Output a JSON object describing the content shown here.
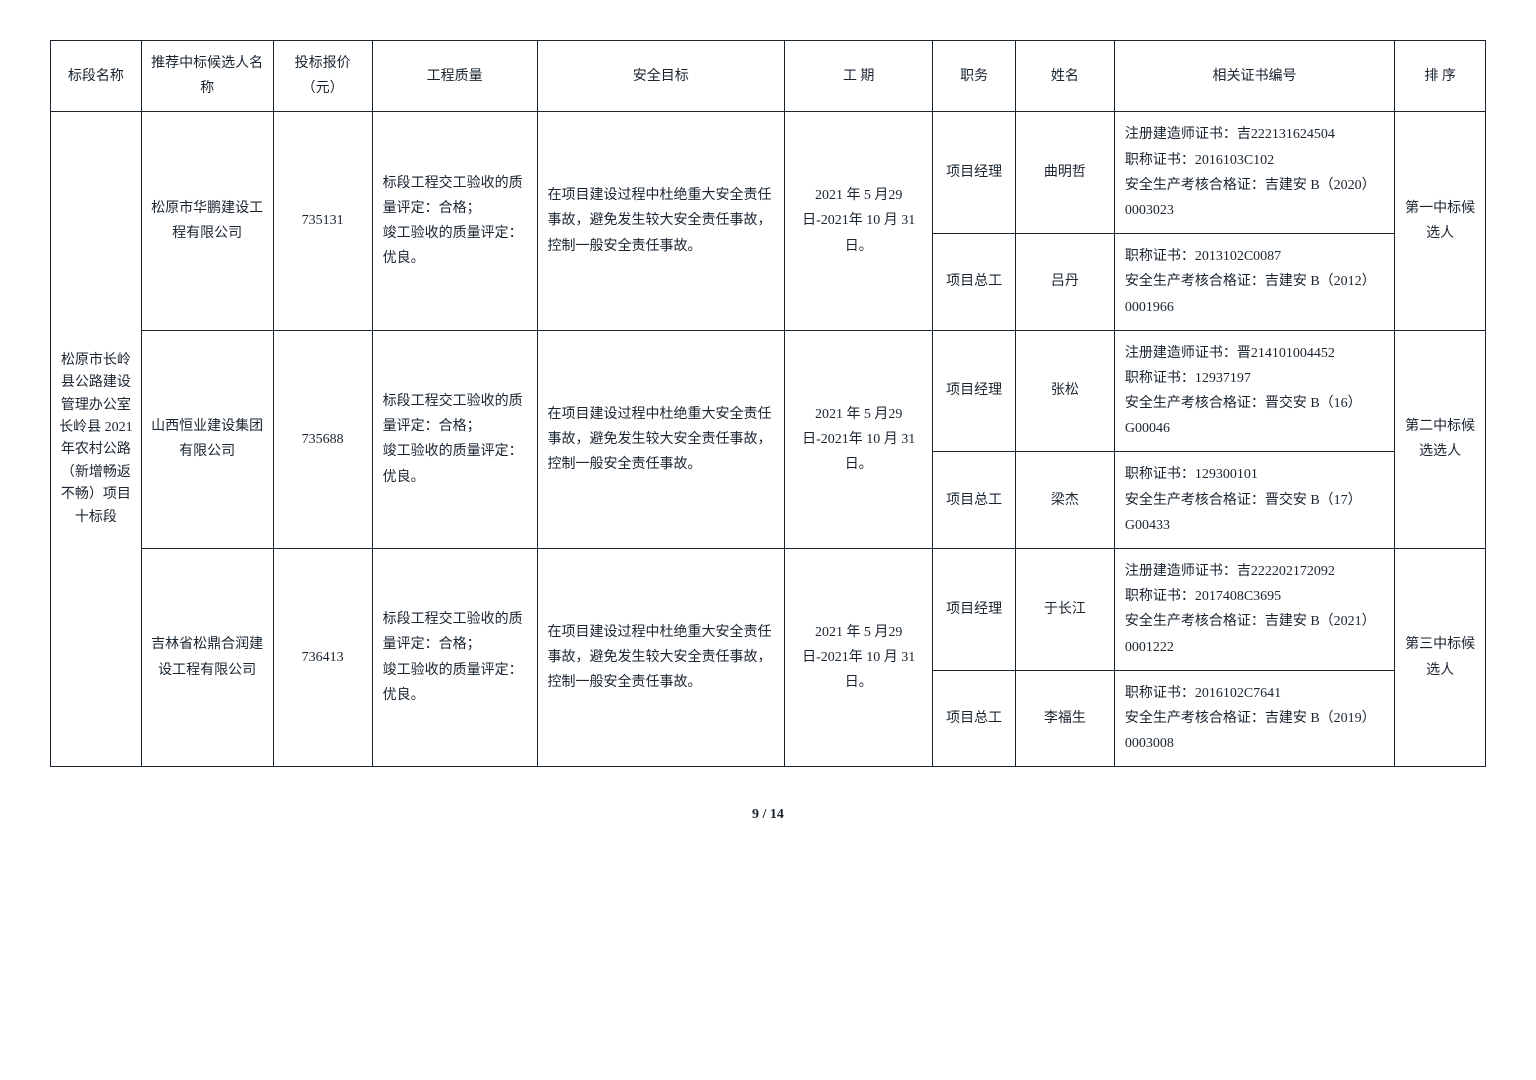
{
  "headers": {
    "section": "标段名称",
    "bidder": "推荐中标候选人名称",
    "price": "投标报价（元）",
    "quality": "工程质量",
    "safety": "安全目标",
    "period": "工 期",
    "role": "职务",
    "name": "姓名",
    "cert": "相关证书编号",
    "rank": "排 序"
  },
  "section_name": "松原市长岭县公路建设管理办公室长岭县 2021 年农村公路（新增畅返不畅）项目十标段",
  "bidders": [
    {
      "company": "松原市华鹏建设工程有限公司",
      "price": "735131",
      "quality": "标段工程交工验收的质量评定：合格；\n竣工验收的质量评定：优良。",
      "safety": "在项目建设过程中杜绝重大安全责任事故，避免发生较大安全责任事故，控制一般安全责任事故。",
      "period": "2021 年 5 月29 日-2021年 10 月 31日。",
      "rank": "第一中标候选人",
      "staff": [
        {
          "role": "项目经理",
          "name": "曲明哲",
          "cert": "注册建造师证书：吉222131624504\n职称证书：2016103C102\n安全生产考核合格证：吉建安 B（2020）0003023"
        },
        {
          "role": "项目总工",
          "name": "吕丹",
          "cert": "职称证书：2013102C0087\n安全生产考核合格证：吉建安 B（2012）0001966"
        }
      ]
    },
    {
      "company": "山西恒业建设集团有限公司",
      "price": "735688",
      "quality": "标段工程交工验收的质量评定：合格；\n竣工验收的质量评定：优良。",
      "safety": "在项目建设过程中杜绝重大安全责任事故，避免发生较大安全责任事故，控制一般安全责任事故。",
      "period": "2021 年 5 月29 日-2021年 10 月 31日。",
      "rank": "第二中标候选选人",
      "staff": [
        {
          "role": "项目经理",
          "name": "张松",
          "cert": "注册建造师证书：晋214101004452\n职称证书：12937197\n安全生产考核合格证：晋交安 B（16）G00046"
        },
        {
          "role": "项目总工",
          "name": "梁杰",
          "cert": "职称证书：129300101\n安全生产考核合格证：晋交安 B（17）G00433"
        }
      ]
    },
    {
      "company": "吉林省松鼎合润建设工程有限公司",
      "price": "736413",
      "quality": "标段工程交工验收的质量评定：合格；\n竣工验收的质量评定：优良。",
      "safety": "在项目建设过程中杜绝重大安全责任事故，避免发生较大安全责任事故，控制一般安全责任事故。",
      "period": "2021 年 5 月29 日-2021年 10 月 31日。",
      "rank": "第三中标候选人",
      "staff": [
        {
          "role": "项目经理",
          "name": "于长江",
          "cert": "注册建造师证书：吉222202172092\n职称证书：2017408C3695\n安全生产考核合格证：吉建安 B（2021）0001222"
        },
        {
          "role": "项目总工",
          "name": "李福生",
          "cert": "职称证书：2016102C7641\n安全生产考核合格证：吉建安 B（2019）0003008"
        }
      ]
    }
  ],
  "footer": "9 / 14"
}
